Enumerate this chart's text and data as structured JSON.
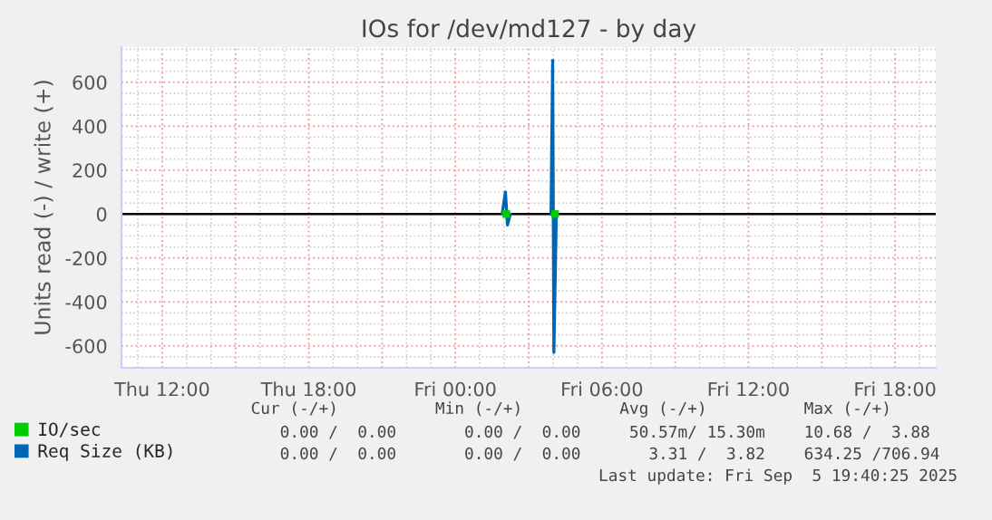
{
  "chart_data": {
    "type": "line",
    "title": "IOs for /dev/md127 - by day",
    "ylabel": "Units read (-) / write (+)",
    "xlim": [
      "2025-09-04T10:20",
      "2025-09-05T19:40"
    ],
    "ylim": [
      -700,
      760
    ],
    "xticks": [
      {
        "value": "2025-09-04T12:00",
        "label": "Thu 12:00"
      },
      {
        "value": "2025-09-04T15:00",
        "label": null
      },
      {
        "value": "2025-09-04T18:00",
        "label": "Thu 18:00"
      },
      {
        "value": "2025-09-04T21:00",
        "label": null
      },
      {
        "value": "2025-09-05T00:00",
        "label": "Fri 00:00"
      },
      {
        "value": "2025-09-05T03:00",
        "label": null
      },
      {
        "value": "2025-09-05T06:00",
        "label": "Fri 06:00"
      },
      {
        "value": "2025-09-05T09:00",
        "label": null
      },
      {
        "value": "2025-09-05T12:00",
        "label": "Fri 12:00"
      },
      {
        "value": "2025-09-05T15:00",
        "label": null
      },
      {
        "value": "2025-09-05T18:00",
        "label": "Fri 18:00"
      }
    ],
    "yticks": [
      -600,
      -400,
      -200,
      0,
      200,
      400,
      600
    ],
    "grid": true,
    "legend": "bottom left",
    "series": [
      {
        "name": "IO/sec",
        "type": "scatter",
        "color": "#00cc00",
        "x": [
          "2025-09-05T02:05",
          "2025-09-05T04:05"
        ],
        "values": [
          0,
          0
        ]
      },
      {
        "name": "Req Size (KB)",
        "color": "#0066b3",
        "x": [
          "2025-09-05T01:55",
          "2025-09-05T02:03",
          "2025-09-05T02:08",
          "2025-09-05T02:15",
          "2025-09-05T03:00",
          "2025-09-05T03:55",
          "2025-09-05T03:59",
          "2025-09-05T04:02",
          "2025-09-05T04:08"
        ],
        "values": [
          0,
          100,
          -50,
          0,
          null,
          0,
          700,
          -630,
          0
        ]
      }
    ],
    "ref_lines": [
      {
        "axis": "y",
        "value": 0,
        "color": "#000000"
      }
    ],
    "annotations": [
      "               Cur (-/+)          Min (-/+)          Avg (-/+)          Max (-/+)",
      "                  0.00 /  0.00       0.00 /  0.00     50.57m/ 15.30m    10.68 /  3.88",
      "                  0.00 /  0.00       0.00 /  0.00       3.31 /  3.82    634.25 /706.94",
      "Last update: Fri Sep  5 19:40:25 2025"
    ]
  }
}
